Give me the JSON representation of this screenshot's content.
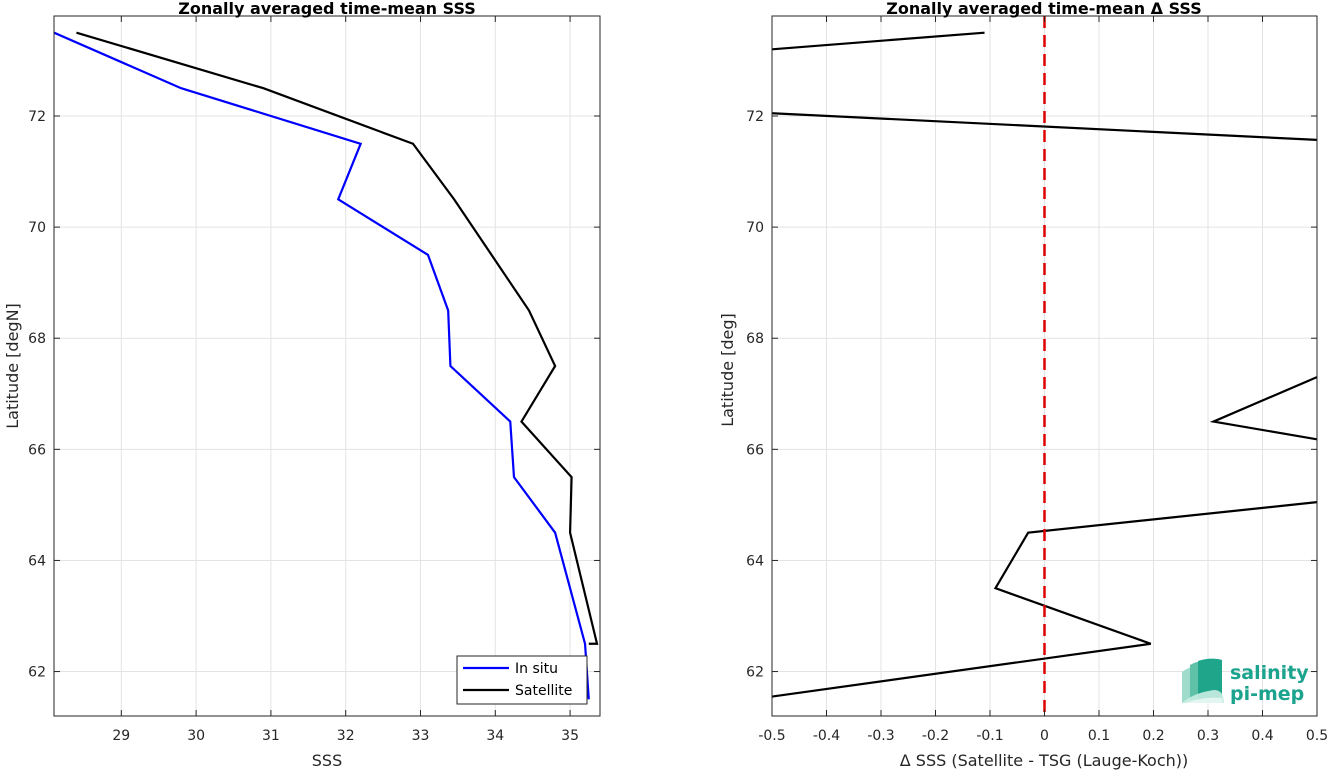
{
  "chart_data": [
    {
      "type": "line",
      "title": "Zonally averaged time-mean SSS",
      "xlabel": "SSS",
      "ylabel": "Latitude [degN]",
      "xlim": [
        28.1,
        35.4
      ],
      "ylim": [
        61.2,
        73.8
      ],
      "xticks": [
        29,
        30,
        31,
        32,
        33,
        34,
        35
      ],
      "yticks": [
        62,
        64,
        66,
        68,
        70,
        72
      ],
      "grid": true,
      "legend_position": "bottom-right",
      "series": [
        {
          "name": "In situ",
          "color": "#0000ff",
          "x": [
            28.1,
            29.8,
            32.2,
            31.9,
            33.1,
            33.37,
            33.4,
            34.2,
            34.25,
            34.8,
            35.2,
            35.25
          ],
          "y": [
            73.5,
            72.5,
            71.5,
            70.5,
            69.5,
            68.5,
            67.5,
            66.5,
            65.5,
            64.5,
            62.5,
            61.5
          ]
        },
        {
          "name": "Satellite",
          "color": "#000000",
          "x": [
            28.4,
            30.9,
            32.9,
            33.45,
            33.95,
            34.45,
            34.8,
            34.35,
            35.02,
            35.0,
            35.36,
            35.25
          ],
          "y": [
            73.5,
            72.5,
            71.5,
            70.5,
            69.5,
            68.5,
            67.5,
            66.5,
            65.5,
            64.5,
            62.5,
            62.5
          ]
        }
      ]
    },
    {
      "type": "line",
      "title": "Zonally averaged time-mean Δ SSS",
      "xlabel": "Δ SSS (Satellite - TSG (Lauge-Koch))",
      "ylabel": "Latitude [deg]",
      "xlim": [
        -0.5,
        0.5
      ],
      "ylim": [
        61.2,
        73.8
      ],
      "xticks": [
        -0.5,
        -0.4,
        -0.3,
        -0.2,
        -0.1,
        0,
        0.1,
        0.2,
        0.3,
        0.4,
        0.5
      ],
      "xtick_labels": [
        "-0.5",
        "-0.4",
        "-0.3",
        "-0.2",
        "-0.1",
        "0",
        "0.1",
        "0.2",
        "0.3",
        "0.4",
        "0.5"
      ],
      "yticks": [
        62,
        64,
        66,
        68,
        70,
        72
      ],
      "grid": true,
      "reference_line": {
        "x": 0,
        "color": "#dd0000",
        "style": "dashed"
      },
      "series": [
        {
          "name": "",
          "color": "#000000",
          "x": [
            -0.11,
            -0.5
          ],
          "y": [
            73.5,
            73.2
          ]
        },
        {
          "name": "",
          "color": "#000000",
          "x": [
            -0.5,
            0.5
          ],
          "y": [
            72.05,
            71.57
          ]
        },
        {
          "name": "",
          "color": "#000000",
          "x": [
            0.5,
            0.31,
            0.5
          ],
          "y": [
            67.3,
            66.5,
            66.18
          ]
        },
        {
          "name": "",
          "color": "#000000",
          "x": [
            0.5,
            -0.03,
            -0.09,
            0.195,
            -0.5
          ],
          "y": [
            65.05,
            64.5,
            63.5,
            62.5,
            61.55
          ]
        }
      ]
    }
  ],
  "logo": {
    "line1": "salinity",
    "line2": "pi-mep"
  }
}
